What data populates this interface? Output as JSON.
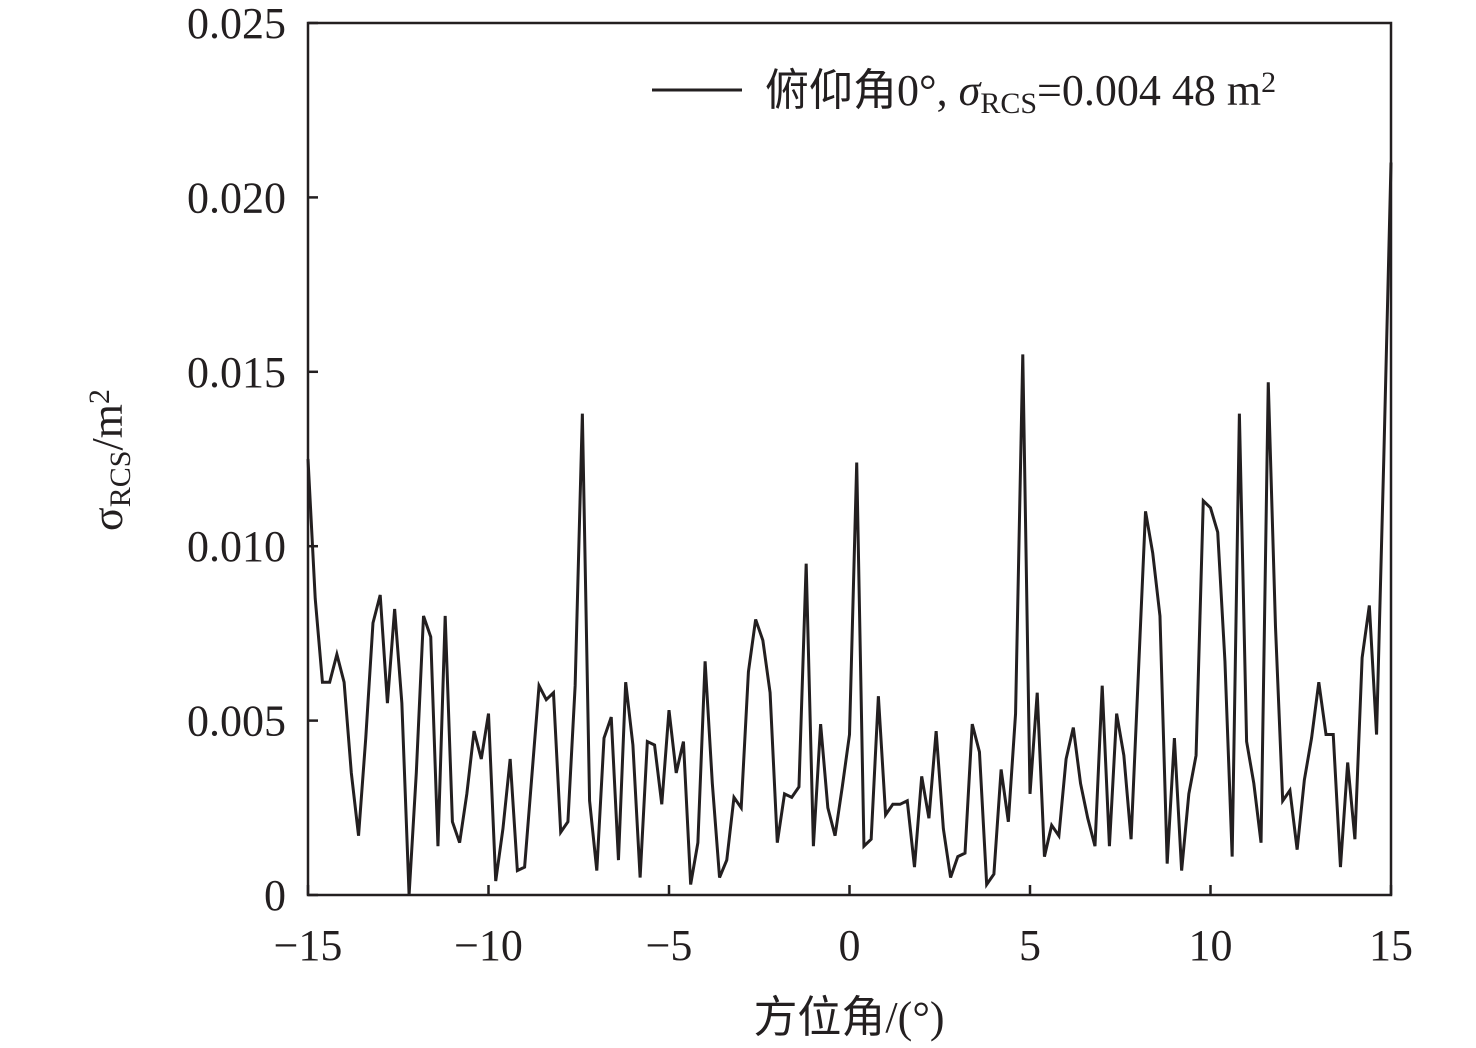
{
  "chart_data": {
    "type": "line",
    "x_label": "方位角/(°)",
    "y_label_runs": [
      {
        "text": "σ"
      },
      {
        "text": "RCS",
        "style": "sub"
      },
      {
        "text": "/m"
      },
      {
        "text": "2",
        "style": "sup"
      }
    ],
    "legend_runs": [
      {
        "text": "俯仰角0°, "
      },
      {
        "text": "σ",
        "style": "italic"
      },
      {
        "text": "RCS",
        "style": "sub"
      },
      {
        "text": "=0.004 48 m"
      },
      {
        "text": "2",
        "style": "sup"
      }
    ],
    "legend_position": "upper right",
    "xlim": [
      -15,
      15
    ],
    "ylim": [
      0,
      0.025
    ],
    "xticks": [
      {
        "value": -15,
        "label": "−15"
      },
      {
        "value": -10,
        "label": "−10"
      },
      {
        "value": -5,
        "label": "−5"
      },
      0,
      5,
      10,
      15
    ],
    "yticks": [
      0,
      0.005,
      {
        "value": 0.01,
        "label": "0.010"
      },
      0.015,
      {
        "value": 0.02,
        "label": "0.020"
      },
      0.025
    ],
    "x": [
      -15,
      -14.8,
      -14.6,
      -14.4,
      -14.2,
      -14,
      -13.8,
      -13.6,
      -13.4,
      -13.2,
      -13,
      -12.8,
      -12.6,
      -12.4,
      -12.2,
      -12,
      -11.8,
      -11.6,
      -11.4,
      -11.2,
      -11,
      -10.8,
      -10.6,
      -10.4,
      -10.2,
      -10,
      -9.8,
      -9.6,
      -9.4,
      -9.2,
      -9,
      -8.8,
      -8.6,
      -8.4,
      -8.2,
      -8,
      -7.8,
      -7.6,
      -7.4,
      -7.2,
      -7,
      -6.8,
      -6.6,
      -6.4,
      -6.2,
      -6,
      -5.8,
      -5.6,
      -5.4,
      -5.2,
      -5,
      -4.8,
      -4.6,
      -4.4,
      -4.2,
      -4,
      -3.8,
      -3.6,
      -3.4,
      -3.2,
      -3,
      -2.8,
      -2.6,
      -2.4,
      -2.2,
      -2,
      -1.8,
      -1.6,
      -1.4,
      -1.2,
      -1,
      -0.8,
      -0.6,
      -0.4,
      -0.2,
      0,
      0.2,
      0.4,
      0.6,
      0.8,
      1,
      1.2,
      1.4,
      1.6,
      1.8,
      2,
      2.2,
      2.4,
      2.6,
      2.8,
      3,
      3.2,
      3.4,
      3.6,
      3.8,
      4,
      4.2,
      4.4,
      4.6,
      4.8,
      5,
      5.2,
      5.4,
      5.6,
      5.8,
      6,
      6.2,
      6.4,
      6.6,
      6.8,
      7,
      7.2,
      7.4,
      7.6,
      7.8,
      8,
      8.2,
      8.4,
      8.6,
      8.8,
      9,
      9.2,
      9.4,
      9.6,
      9.8,
      10,
      10.2,
      10.4,
      10.6,
      10.8,
      11,
      11.2,
      11.4,
      11.6,
      11.8,
      12,
      12.2,
      12.4,
      12.6,
      12.8,
      13,
      13.2,
      13.4,
      13.6,
      13.8,
      14,
      14.2,
      14.4,
      14.6,
      14.8,
      15
    ],
    "series": [
      {
        "color": "#231f20",
        "values": [
          0.0125,
          0.0085,
          0.0061,
          0.0061,
          0.0069,
          0.0061,
          0.0035,
          0.0017,
          0.0045,
          0.0078,
          0.0086,
          0.0055,
          0.0082,
          0.0055,
          0.0,
          0.0035,
          0.008,
          0.0074,
          0.0014,
          0.008,
          0.0021,
          0.0015,
          0.0029,
          0.0047,
          0.0039,
          0.0052,
          0.0004,
          0.0019,
          0.0039,
          0.0007,
          0.0008,
          0.0034,
          0.006,
          0.0056,
          0.0058,
          0.0018,
          0.0021,
          0.006,
          0.0138,
          0.0027,
          0.0007,
          0.0045,
          0.0051,
          0.001,
          0.0061,
          0.0043,
          0.0005,
          0.0044,
          0.0043,
          0.0026,
          0.0053,
          0.0035,
          0.0044,
          0.0003,
          0.0015,
          0.0067,
          0.0032,
          0.0005,
          0.001,
          0.0028,
          0.0025,
          0.0064,
          0.0079,
          0.0073,
          0.0058,
          0.0015,
          0.0029,
          0.0028,
          0.0031,
          0.0095,
          0.0014,
          0.0049,
          0.0025,
          0.0017,
          0.0031,
          0.0046,
          0.0124,
          0.0014,
          0.0016,
          0.0057,
          0.0023,
          0.0026,
          0.0026,
          0.0027,
          0.0008,
          0.0034,
          0.0022,
          0.0047,
          0.0019,
          0.0005,
          0.0011,
          0.0012,
          0.0049,
          0.0041,
          0.0003,
          0.0006,
          0.0036,
          0.0021,
          0.0052,
          0.0155,
          0.0029,
          0.0058,
          0.0011,
          0.002,
          0.0017,
          0.0039,
          0.0048,
          0.0032,
          0.0022,
          0.0014,
          0.006,
          0.0014,
          0.0052,
          0.004,
          0.0016,
          0.0063,
          0.011,
          0.0098,
          0.008,
          0.0009,
          0.0045,
          0.0007,
          0.0029,
          0.004,
          0.0113,
          0.0111,
          0.0104,
          0.0067,
          0.0011,
          0.0138,
          0.0044,
          0.0032,
          0.0015,
          0.0147,
          0.0077,
          0.0027,
          0.003,
          0.0013,
          0.0033,
          0.0045,
          0.0061,
          0.0046,
          0.0046,
          0.0008,
          0.0038,
          0.0016,
          0.0068,
          0.0083,
          0.0046,
          0.0125,
          0.021
        ]
      }
    ]
  }
}
